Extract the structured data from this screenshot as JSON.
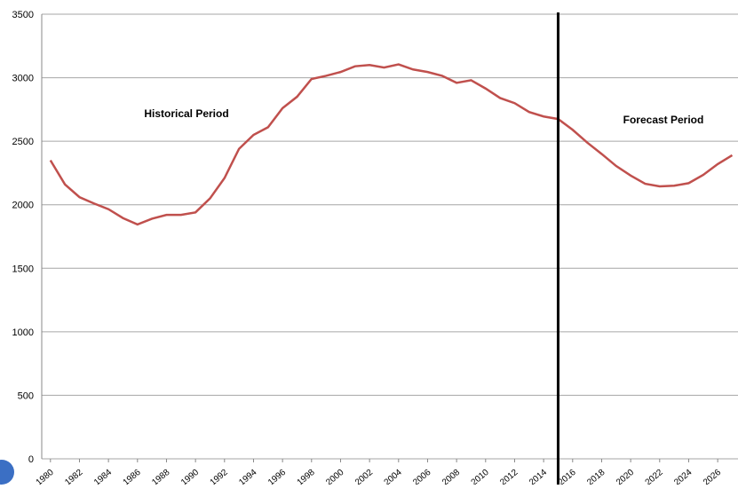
{
  "chart_data": {
    "type": "line",
    "annotations": [
      "Historical Period",
      "Forecast Period"
    ],
    "x": [
      1980,
      1981,
      1982,
      1983,
      1984,
      1985,
      1986,
      1987,
      1988,
      1989,
      1990,
      1991,
      1992,
      1993,
      1994,
      1995,
      1996,
      1997,
      1998,
      1999,
      2000,
      2001,
      2002,
      2003,
      2004,
      2005,
      2006,
      2007,
      2008,
      2009,
      2010,
      2011,
      2012,
      2013,
      2014,
      2015,
      2016,
      2017,
      2018,
      2019,
      2020,
      2021,
      2022,
      2023,
      2024,
      2025,
      2026,
      2027
    ],
    "values": [
      2350,
      2160,
      2060,
      2010,
      1965,
      1895,
      1845,
      1890,
      1920,
      1920,
      1940,
      2050,
      2210,
      2440,
      2550,
      2610,
      2760,
      2850,
      2990,
      3015,
      3045,
      3090,
      3100,
      3080,
      3105,
      3065,
      3045,
      3015,
      2960,
      2980,
      2915,
      2840,
      2800,
      2730,
      2695,
      2675,
      2590,
      2490,
      2400,
      2305,
      2230,
      2165,
      2145,
      2150,
      2170,
      2235,
      2320,
      2390
    ],
    "color": "#c0504d",
    "vline": 2015,
    "xlim": [
      1979.4,
      2027.4
    ],
    "xticks": [
      1980,
      1982,
      1984,
      1986,
      1988,
      1990,
      1992,
      1994,
      1996,
      1998,
      2000,
      2002,
      2004,
      2006,
      2008,
      2010,
      2012,
      2014,
      2016,
      2018,
      2020,
      2022,
      2024,
      2026
    ],
    "ylim": [
      0,
      3500
    ],
    "yticks": [
      0,
      500,
      1000,
      1500,
      2000,
      2500,
      3000,
      3500
    ],
    "grid": true
  }
}
